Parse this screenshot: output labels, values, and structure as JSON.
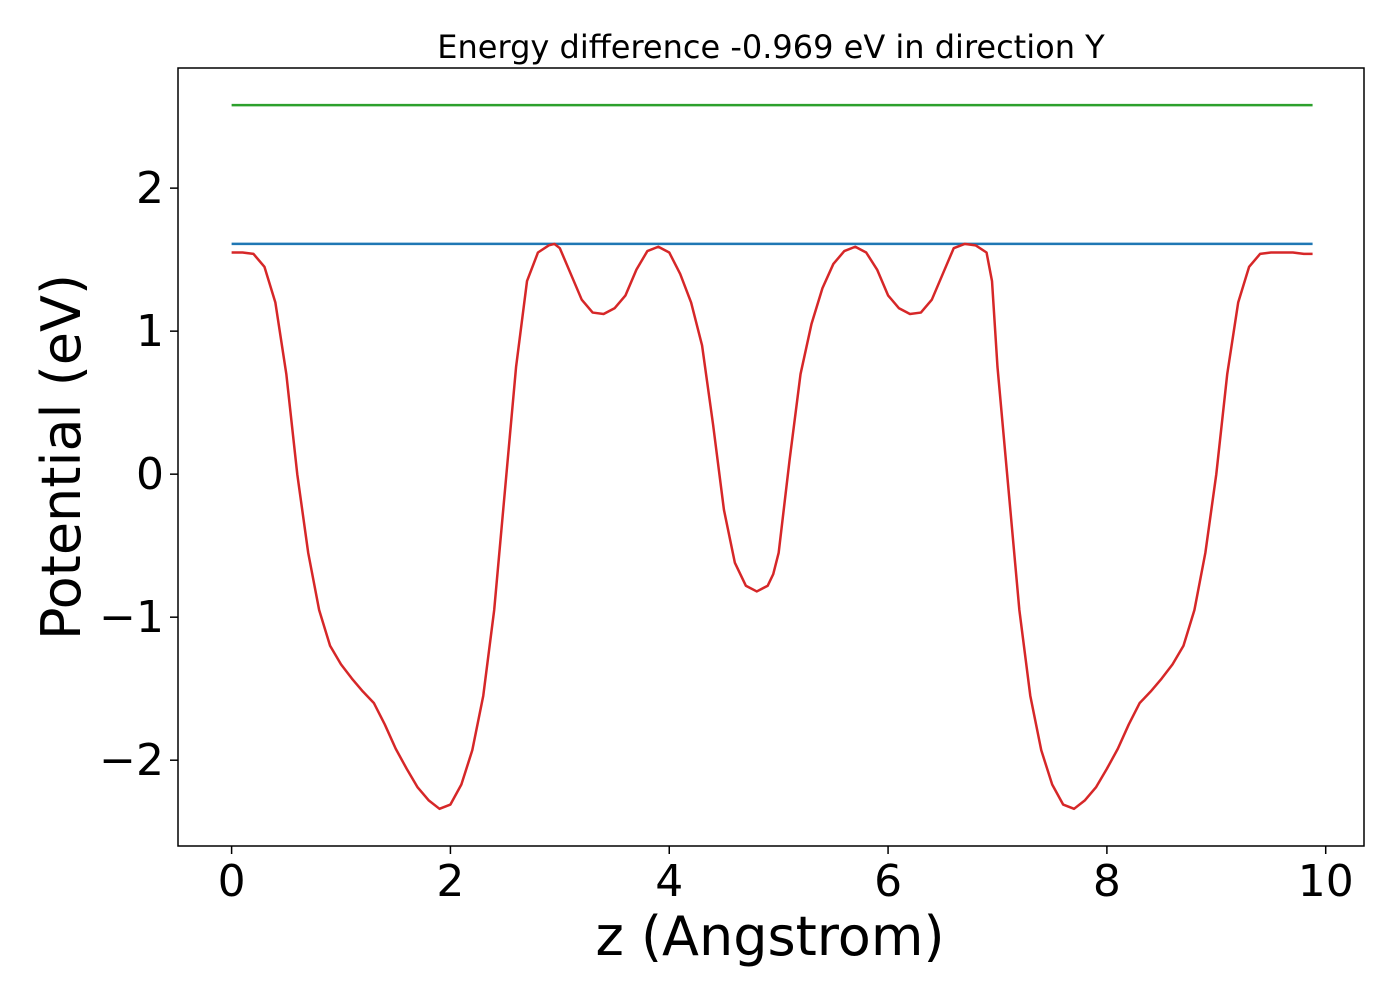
{
  "chart_data": {
    "type": "line",
    "title": "Energy difference -0.969 eV in direction Y",
    "xlabel": "z (Angstrom)",
    "ylabel": "Potential (eV)",
    "xlim": [
      -0.49,
      10.35
    ],
    "ylim": [
      -2.6,
      2.84
    ],
    "x_ticks": [
      0,
      2,
      4,
      6,
      8,
      10
    ],
    "x_tick_labels": [
      "0",
      "2",
      "4",
      "6",
      "8",
      "10"
    ],
    "y_ticks": [
      -2,
      -1,
      0,
      1,
      2
    ],
    "y_tick_labels": [
      "−2",
      "−1",
      "0",
      "1",
      "2"
    ],
    "grid": false,
    "legend": "none",
    "series": [
      {
        "color": "#d62728",
        "x": [
          0,
          0.1,
          0.2,
          0.3,
          0.4,
          0.5,
          0.6,
          0.7,
          0.8,
          0.9,
          1.0,
          1.1,
          1.2,
          1.3,
          1.4,
          1.5,
          1.6,
          1.7,
          1.8,
          1.9,
          2.0,
          2.1,
          2.2,
          2.3,
          2.4,
          2.5,
          2.6,
          2.7,
          2.8,
          2.9,
          2.95,
          3.0,
          3.1,
          3.2,
          3.3,
          3.4,
          3.5,
          3.6,
          3.7,
          3.8,
          3.9,
          4.0,
          4.1,
          4.2,
          4.3,
          4.4,
          4.5,
          4.6,
          4.7,
          4.8,
          4.9,
          4.95,
          5.0,
          5.1,
          5.2,
          5.3,
          5.4,
          5.5,
          5.6,
          5.7,
          5.8,
          5.9,
          6.0,
          6.1,
          6.2,
          6.3,
          6.4,
          6.5,
          6.6,
          6.7,
          6.8,
          6.9,
          6.95,
          7.0,
          7.1,
          7.2,
          7.3,
          7.4,
          7.5,
          7.6,
          7.7,
          7.8,
          7.9,
          8.0,
          8.1,
          8.2,
          8.3,
          8.4,
          8.5,
          8.6,
          8.7,
          8.8,
          8.9,
          9.0,
          9.1,
          9.2,
          9.3,
          9.4,
          9.5,
          9.6,
          9.7,
          9.8,
          9.88
        ],
        "y": [
          1.55,
          1.55,
          1.54,
          1.45,
          1.2,
          0.7,
          0.0,
          -0.55,
          -0.95,
          -1.2,
          -1.33,
          -1.43,
          -1.52,
          -1.6,
          -1.75,
          -1.92,
          -2.06,
          -2.19,
          -2.28,
          -2.34,
          -2.31,
          -2.17,
          -1.93,
          -1.55,
          -0.95,
          -0.1,
          0.75,
          1.35,
          1.55,
          1.6,
          1.61,
          1.58,
          1.4,
          1.22,
          1.13,
          1.12,
          1.16,
          1.25,
          1.43,
          1.56,
          1.59,
          1.55,
          1.4,
          1.2,
          0.9,
          0.35,
          -0.25,
          -0.62,
          -0.78,
          -0.82,
          -0.78,
          -0.7,
          -0.55,
          0.1,
          0.7,
          1.05,
          1.3,
          1.47,
          1.56,
          1.59,
          1.55,
          1.43,
          1.25,
          1.16,
          1.12,
          1.13,
          1.22,
          1.4,
          1.58,
          1.61,
          1.6,
          1.55,
          1.35,
          0.75,
          -0.1,
          -0.95,
          -1.55,
          -1.93,
          -2.17,
          -2.31,
          -2.34,
          -2.28,
          -2.19,
          -2.06,
          -1.92,
          -1.75,
          -1.6,
          -1.52,
          -1.43,
          -1.33,
          -1.2,
          -0.95,
          -0.55,
          0.0,
          0.7,
          1.2,
          1.45,
          1.54,
          1.55,
          1.55,
          1.55,
          1.54,
          1.54
        ]
      },
      {
        "color": "#1f77b4",
        "x": [
          0,
          9.88
        ],
        "y": [
          1.61,
          1.61
        ]
      },
      {
        "color": "#2ca02c",
        "x": [
          0,
          9.88
        ],
        "y": [
          2.58,
          2.58
        ]
      }
    ]
  }
}
